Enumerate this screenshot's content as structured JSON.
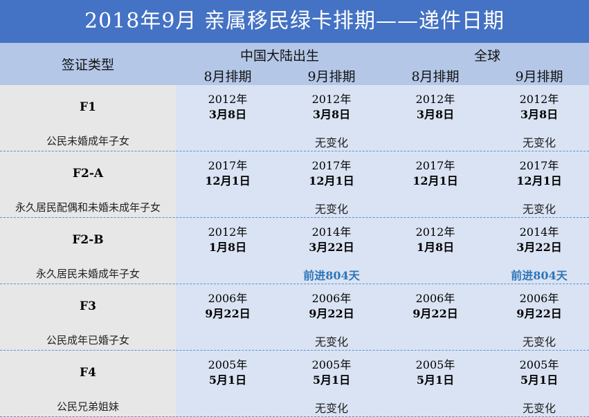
{
  "title": "2018年9月  亲属移民绿卡排期——递件日期",
  "header": {
    "visa_type": "签证类型",
    "group_china": "中国大陆出生",
    "group_world": "全球",
    "aug": "8月排期",
    "sep": "9月排期"
  },
  "rows": [
    {
      "type": "F1",
      "note": "公民未婚成年子女",
      "cells": [
        [
          "2012年",
          "3月8日"
        ],
        [
          "2012年",
          "3月8日"
        ],
        [
          "2012年",
          "3月8日"
        ],
        [
          "2012年",
          "3月8日"
        ]
      ],
      "change_china": "无变化",
      "change_world": "无变化",
      "advanced": false
    },
    {
      "type": "F2-A",
      "note": "永久居民配偶和未婚未成年子女",
      "cells": [
        [
          "2017年",
          "12月1日"
        ],
        [
          "2017年",
          "12月1日"
        ],
        [
          "2017年",
          "12月1日"
        ],
        [
          "2017年",
          "12月1日"
        ]
      ],
      "change_china": "无变化",
      "change_world": "无变化",
      "advanced": false
    },
    {
      "type": "F2-B",
      "note": "永久居民未婚成年子女",
      "cells": [
        [
          "2012年",
          "1月8日"
        ],
        [
          "2014年",
          "3月22日"
        ],
        [
          "2012年",
          "1月8日"
        ],
        [
          "2014年",
          "3月22日"
        ]
      ],
      "change_china": "前进804天",
      "change_world": "前进804天",
      "advanced": true
    },
    {
      "type": "F3",
      "note": "公民成年已婚子女",
      "cells": [
        [
          "2006年",
          "9月22日"
        ],
        [
          "2006年",
          "9月22日"
        ],
        [
          "2006年",
          "9月22日"
        ],
        [
          "2006年",
          "9月22日"
        ]
      ],
      "change_china": "无变化",
      "change_world": "无变化",
      "advanced": false
    },
    {
      "type": "F4",
      "note": "公民兄弟姐妹",
      "cells": [
        [
          "2005年",
          "5月1日"
        ],
        [
          "2005年",
          "5月1日"
        ],
        [
          "2005年",
          "5月1日"
        ],
        [
          "2005年",
          "5月1日"
        ]
      ],
      "change_china": "无变化",
      "change_world": "无变化",
      "advanced": false
    }
  ],
  "colors": {
    "title_bg": "#4472c4",
    "header_bg": "#b4c7e7",
    "advance_text": "#2e75b6"
  }
}
